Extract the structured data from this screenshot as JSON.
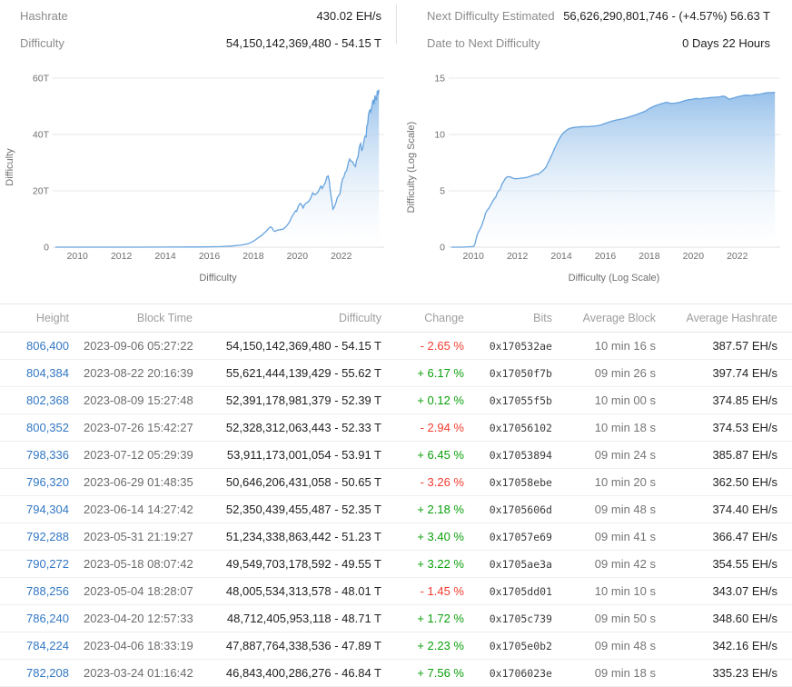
{
  "colors": {
    "link": "#3277c3",
    "positive": "#0ba00b",
    "negative": "#f43b2e",
    "chart_line": "#66a3de",
    "chart_fill_top": "#8fbce9",
    "grid": "#e7e7e7"
  },
  "stats": {
    "left": [
      {
        "label": "Hashrate",
        "value": "430.02 EH/s"
      },
      {
        "label": "Difficulty",
        "value": "54,150,142,369,480 - 54.15 T"
      }
    ],
    "right": [
      {
        "label": "Next Difficulty Estimated",
        "value": "56,626,290,801,746 - (+4.57%) 56.63 T"
      },
      {
        "label": "Date to Next Difficulty",
        "value": "0 Days 22 Hours"
      }
    ]
  },
  "chart_data": [
    {
      "type": "area",
      "title": "Difficulty",
      "xlabel": "Difficulty",
      "ylabel": "Difficulty",
      "xlim": [
        2009,
        2023.95
      ],
      "ylim": [
        0,
        60
      ],
      "yticks": [
        {
          "v": 0,
          "label": "0"
        },
        {
          "v": 20,
          "label": "20T"
        },
        {
          "v": 40,
          "label": "40T"
        },
        {
          "v": 60,
          "label": "60T"
        }
      ],
      "xticks": [
        2010,
        2012,
        2014,
        2016,
        2018,
        2020,
        2022
      ],
      "grid": true,
      "legend": "none",
      "unit": "T",
      "points": [
        [
          2009,
          0
        ],
        [
          2010,
          0
        ],
        [
          2011,
          0
        ],
        [
          2012,
          0
        ],
        [
          2013,
          0.01
        ],
        [
          2014,
          0.03
        ],
        [
          2015,
          0.05
        ],
        [
          2015.5,
          0.06
        ],
        [
          2016,
          0.12
        ],
        [
          2016.5,
          0.2
        ],
        [
          2017,
          0.39
        ],
        [
          2017.25,
          0.6
        ],
        [
          2017.5,
          0.8
        ],
        [
          2017.75,
          1.2
        ],
        [
          2017.95,
          1.87
        ],
        [
          2018.1,
          2.6
        ],
        [
          2018.25,
          3.5
        ],
        [
          2018.4,
          4.3
        ],
        [
          2018.5,
          5.1
        ],
        [
          2018.6,
          5.8
        ],
        [
          2018.7,
          6.7
        ],
        [
          2018.78,
          7.18
        ],
        [
          2018.85,
          6.9
        ],
        [
          2018.92,
          5.8
        ],
        [
          2019.0,
          5.6
        ],
        [
          2019.08,
          6.06
        ],
        [
          2019.2,
          6.2
        ],
        [
          2019.35,
          6.4
        ],
        [
          2019.45,
          7.0
        ],
        [
          2019.55,
          7.9
        ],
        [
          2019.65,
          9.0
        ],
        [
          2019.75,
          10.8
        ],
        [
          2019.85,
          12.0
        ],
        [
          2019.92,
          12.9
        ],
        [
          2019.97,
          12.7
        ],
        [
          2020.05,
          14.7
        ],
        [
          2020.13,
          15.5
        ],
        [
          2020.2,
          15.0
        ],
        [
          2020.26,
          13.9
        ],
        [
          2020.33,
          15.1
        ],
        [
          2020.42,
          15.8
        ],
        [
          2020.5,
          16.1
        ],
        [
          2020.6,
          17.3
        ],
        [
          2020.7,
          19.3
        ],
        [
          2020.78,
          18.6
        ],
        [
          2020.87,
          19.0
        ],
        [
          2020.95,
          19.7
        ],
        [
          2021.0,
          20.6
        ],
        [
          2021.07,
          21.7
        ],
        [
          2021.13,
          20.8
        ],
        [
          2021.2,
          21.9
        ],
        [
          2021.28,
          23.0
        ],
        [
          2021.35,
          25.0
        ],
        [
          2021.4,
          25.3
        ],
        [
          2021.45,
          23.6
        ],
        [
          2021.5,
          19.9
        ],
        [
          2021.56,
          16.9
        ],
        [
          2021.62,
          13.5
        ],
        [
          2021.68,
          14.2
        ],
        [
          2021.75,
          15.6
        ],
        [
          2021.82,
          17.6
        ],
        [
          2021.88,
          18.3
        ],
        [
          2021.94,
          18.9
        ],
        [
          2022.0,
          22.3
        ],
        [
          2022.06,
          24.2
        ],
        [
          2022.12,
          25.0
        ],
        [
          2022.18,
          26.6
        ],
        [
          2022.25,
          27.3
        ],
        [
          2022.32,
          29.9
        ],
        [
          2022.38,
          31.3
        ],
        [
          2022.45,
          30.5
        ],
        [
          2022.52,
          30.3
        ],
        [
          2022.58,
          29.2
        ],
        [
          2022.64,
          28.6
        ],
        [
          2022.7,
          31.0
        ],
        [
          2022.76,
          32.0
        ],
        [
          2022.82,
          35.6
        ],
        [
          2022.88,
          36.8
        ],
        [
          2022.93,
          34.2
        ],
        [
          2022.98,
          35.4
        ],
        [
          2023.03,
          37.6
        ],
        [
          2023.08,
          39.4
        ],
        [
          2023.13,
          39.2
        ],
        [
          2023.16,
          43.1
        ],
        [
          2023.2,
          43.6
        ],
        [
          2023.23,
          46.84
        ],
        [
          2023.26,
          47.89
        ],
        [
          2023.3,
          48.71
        ],
        [
          2023.34,
          48.01
        ],
        [
          2023.38,
          49.55
        ],
        [
          2023.41,
          51.23
        ],
        [
          2023.45,
          52.35
        ],
        [
          2023.49,
          50.65
        ],
        [
          2023.53,
          53.91
        ],
        [
          2023.57,
          52.33
        ],
        [
          2023.6,
          52.39
        ],
        [
          2023.64,
          55.62
        ],
        [
          2023.68,
          54.15
        ],
        [
          2023.71,
          55.9
        ]
      ]
    },
    {
      "type": "area",
      "title": "Difficulty (Log Scale)",
      "xlabel": "Difficulty (Log Scale)",
      "ylabel": "Difficulty (Log Scale)",
      "xlim": [
        2009,
        2023.95
      ],
      "ylim": [
        0,
        15
      ],
      "yticks": [
        {
          "v": 0,
          "label": "0"
        },
        {
          "v": 5,
          "label": "5"
        },
        {
          "v": 10,
          "label": "10"
        },
        {
          "v": 15,
          "label": "15"
        }
      ],
      "xticks": [
        2010,
        2012,
        2014,
        2016,
        2018,
        2020,
        2022
      ],
      "grid": true,
      "legend": "none",
      "unit": "log10(difficulty)",
      "points": [
        [
          2009,
          0
        ],
        [
          2009.5,
          0
        ],
        [
          2009.95,
          0.05
        ],
        [
          2010.02,
          0.07
        ],
        [
          2010.07,
          0.3
        ],
        [
          2010.12,
          0.7
        ],
        [
          2010.17,
          1.05
        ],
        [
          2010.22,
          1.3
        ],
        [
          2010.3,
          1.6
        ],
        [
          2010.38,
          1.9
        ],
        [
          2010.44,
          2.3
        ],
        [
          2010.5,
          2.6
        ],
        [
          2010.55,
          3.0
        ],
        [
          2010.62,
          3.25
        ],
        [
          2010.7,
          3.45
        ],
        [
          2010.78,
          3.7
        ],
        [
          2010.88,
          4.1
        ],
        [
          2010.95,
          4.3
        ],
        [
          2011.02,
          4.45
        ],
        [
          2011.08,
          4.8
        ],
        [
          2011.15,
          5.0
        ],
        [
          2011.22,
          5.15
        ],
        [
          2011.3,
          5.6
        ],
        [
          2011.38,
          5.85
        ],
        [
          2011.45,
          6.1
        ],
        [
          2011.52,
          6.22
        ],
        [
          2011.6,
          6.26
        ],
        [
          2011.7,
          6.22
        ],
        [
          2011.8,
          6.12
        ],
        [
          2011.9,
          6.07
        ],
        [
          2012.0,
          6.08
        ],
        [
          2012.15,
          6.12
        ],
        [
          2012.3,
          6.15
        ],
        [
          2012.45,
          6.2
        ],
        [
          2012.6,
          6.3
        ],
        [
          2012.75,
          6.4
        ],
        [
          2012.88,
          6.5
        ],
        [
          2012.94,
          6.45
        ],
        [
          2013.0,
          6.55
        ],
        [
          2013.1,
          6.7
        ],
        [
          2013.2,
          6.87
        ],
        [
          2013.3,
          7.1
        ],
        [
          2013.4,
          7.5
        ],
        [
          2013.5,
          7.92
        ],
        [
          2013.6,
          8.35
        ],
        [
          2013.7,
          8.8
        ],
        [
          2013.8,
          9.2
        ],
        [
          2013.9,
          9.6
        ],
        [
          2014.0,
          9.92
        ],
        [
          2014.1,
          10.15
        ],
        [
          2014.2,
          10.32
        ],
        [
          2014.32,
          10.48
        ],
        [
          2014.45,
          10.58
        ],
        [
          2014.6,
          10.63
        ],
        [
          2014.8,
          10.67
        ],
        [
          2015.0,
          10.7
        ],
        [
          2015.2,
          10.69
        ],
        [
          2015.4,
          10.73
        ],
        [
          2015.6,
          10.77
        ],
        [
          2015.8,
          10.85
        ],
        [
          2016.0,
          11.0
        ],
        [
          2016.2,
          11.12
        ],
        [
          2016.4,
          11.24
        ],
        [
          2016.6,
          11.32
        ],
        [
          2016.8,
          11.4
        ],
        [
          2017.0,
          11.5
        ],
        [
          2017.2,
          11.64
        ],
        [
          2017.4,
          11.76
        ],
        [
          2017.6,
          11.9
        ],
        [
          2017.8,
          12.06
        ],
        [
          2018.0,
          12.3
        ],
        [
          2018.2,
          12.5
        ],
        [
          2018.4,
          12.64
        ],
        [
          2018.6,
          12.77
        ],
        [
          2018.78,
          12.86
        ],
        [
          2018.9,
          12.8
        ],
        [
          2019.0,
          12.75
        ],
        [
          2019.2,
          12.79
        ],
        [
          2019.4,
          12.86
        ],
        [
          2019.6,
          13.0
        ],
        [
          2019.8,
          13.09
        ],
        [
          2019.92,
          13.11
        ],
        [
          2020.05,
          13.17
        ],
        [
          2020.2,
          13.19
        ],
        [
          2020.27,
          13.14
        ],
        [
          2020.4,
          13.2
        ],
        [
          2020.6,
          13.23
        ],
        [
          2020.8,
          13.28
        ],
        [
          2021.0,
          13.31
        ],
        [
          2021.2,
          13.34
        ],
        [
          2021.35,
          13.4
        ],
        [
          2021.45,
          13.37
        ],
        [
          2021.62,
          13.13
        ],
        [
          2021.75,
          13.19
        ],
        [
          2021.88,
          13.27
        ],
        [
          2022.0,
          13.35
        ],
        [
          2022.2,
          13.43
        ],
        [
          2022.35,
          13.5
        ],
        [
          2022.5,
          13.48
        ],
        [
          2022.64,
          13.46
        ],
        [
          2022.76,
          13.51
        ],
        [
          2022.88,
          13.57
        ],
        [
          2022.94,
          13.53
        ],
        [
          2023.03,
          13.58
        ],
        [
          2023.16,
          13.63
        ],
        [
          2023.3,
          13.69
        ],
        [
          2023.45,
          13.72
        ],
        [
          2023.57,
          13.72
        ],
        [
          2023.71,
          13.73
        ]
      ]
    }
  ],
  "table": {
    "headers": [
      "Height",
      "Block Time",
      "Difficulty",
      "Change",
      "Bits",
      "Average Block",
      "Average Hashrate"
    ],
    "rows": [
      {
        "height": "806,400",
        "block_time": "2023-09-06 05:27:22",
        "difficulty": "54,150,142,369,480 - 54.15 T",
        "change": "- 2.65 %",
        "bits": "0x170532ae",
        "avg_block": "10 min 16 s",
        "avg_hashrate": "387.57 EH/s"
      },
      {
        "height": "804,384",
        "block_time": "2023-08-22 20:16:39",
        "difficulty": "55,621,444,139,429 - 55.62 T",
        "change": "+ 6.17 %",
        "bits": "0x17050f7b",
        "avg_block": "09 min 26 s",
        "avg_hashrate": "397.74 EH/s"
      },
      {
        "height": "802,368",
        "block_time": "2023-08-09 15:27:48",
        "difficulty": "52,391,178,981,379 - 52.39 T",
        "change": "+ 0.12 %",
        "bits": "0x17055f5b",
        "avg_block": "10 min 00 s",
        "avg_hashrate": "374.85 EH/s"
      },
      {
        "height": "800,352",
        "block_time": "2023-07-26 15:42:27",
        "difficulty": "52,328,312,063,443 - 52.33 T",
        "change": "- 2.94 %",
        "bits": "0x17056102",
        "avg_block": "10 min 18 s",
        "avg_hashrate": "374.53 EH/s"
      },
      {
        "height": "798,336",
        "block_time": "2023-07-12 05:29:39",
        "difficulty": "53,911,173,001,054 - 53.91 T",
        "change": "+ 6.45 %",
        "bits": "0x17053894",
        "avg_block": "09 min 24 s",
        "avg_hashrate": "385.87 EH/s"
      },
      {
        "height": "796,320",
        "block_time": "2023-06-29 01:48:35",
        "difficulty": "50,646,206,431,058 - 50.65 T",
        "change": "- 3.26 %",
        "bits": "0x17058ebe",
        "avg_block": "10 min 20 s",
        "avg_hashrate": "362.50 EH/s"
      },
      {
        "height": "794,304",
        "block_time": "2023-06-14 14:27:42",
        "difficulty": "52,350,439,455,487 - 52.35 T",
        "change": "+ 2.18 %",
        "bits": "0x1705606d",
        "avg_block": "09 min 48 s",
        "avg_hashrate": "374.40 EH/s"
      },
      {
        "height": "792,288",
        "block_time": "2023-05-31 21:19:27",
        "difficulty": "51,234,338,863,442 - 51.23 T",
        "change": "+ 3.40 %",
        "bits": "0x17057e69",
        "avg_block": "09 min 41 s",
        "avg_hashrate": "366.47 EH/s"
      },
      {
        "height": "790,272",
        "block_time": "2023-05-18 08:07:42",
        "difficulty": "49,549,703,178,592 - 49.55 T",
        "change": "+ 3.22 %",
        "bits": "0x1705ae3a",
        "avg_block": "09 min 42 s",
        "avg_hashrate": "354.55 EH/s"
      },
      {
        "height": "788,256",
        "block_time": "2023-05-04 18:28:07",
        "difficulty": "48,005,534,313,578 - 48.01 T",
        "change": "- 1.45 %",
        "bits": "0x1705dd01",
        "avg_block": "10 min 10 s",
        "avg_hashrate": "343.07 EH/s"
      },
      {
        "height": "786,240",
        "block_time": "2023-04-20 12:57:33",
        "difficulty": "48,712,405,953,118 - 48.71 T",
        "change": "+ 1.72 %",
        "bits": "0x1705c739",
        "avg_block": "09 min 50 s",
        "avg_hashrate": "348.60 EH/s"
      },
      {
        "height": "784,224",
        "block_time": "2023-04-06 18:33:19",
        "difficulty": "47,887,764,338,536 - 47.89 T",
        "change": "+ 2.23 %",
        "bits": "0x1705e0b2",
        "avg_block": "09 min 48 s",
        "avg_hashrate": "342.16 EH/s"
      },
      {
        "height": "782,208",
        "block_time": "2023-03-24 01:16:42",
        "difficulty": "46,843,400,286,276 - 46.84 T",
        "change": "+ 7.56 %",
        "bits": "0x1706023e",
        "avg_block": "09 min 18 s",
        "avg_hashrate": "335.23 EH/s"
      }
    ]
  }
}
